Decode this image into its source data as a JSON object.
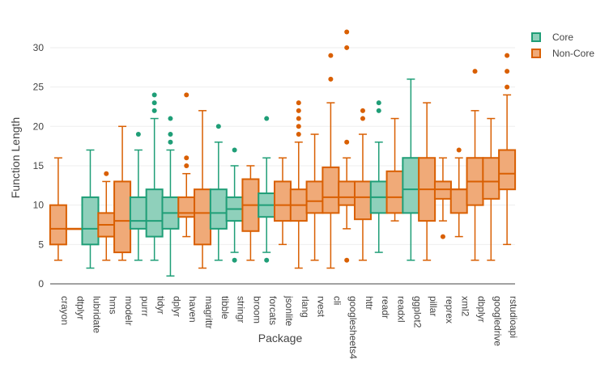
{
  "chart_data": {
    "type": "box",
    "xlabel": "Package",
    "ylabel": "Function Length",
    "ylim": [
      0,
      34
    ],
    "yticks": [
      0,
      5,
      10,
      15,
      20,
      25,
      30
    ],
    "grid": true,
    "legend_position": "top-right",
    "colors": {
      "Core": "#1f9e77",
      "Non-Core": "#d95f02"
    },
    "series_names": [
      "Core",
      "Non-Core"
    ],
    "packages": [
      {
        "name": "crayon",
        "group": "Non-Core",
        "whislo": 3,
        "q1": 5,
        "med": 7,
        "q3": 10,
        "whishi": 16,
        "outliers": []
      },
      {
        "name": "dtplyr",
        "group": "Non-Core",
        "whislo": 7,
        "q1": 7,
        "med": 7,
        "q3": 7,
        "whishi": 7,
        "outliers": []
      },
      {
        "name": "lubridate",
        "group": "Core",
        "whislo": 2,
        "q1": 5,
        "med": 7,
        "q3": 11,
        "whishi": 17,
        "outliers": []
      },
      {
        "name": "hms",
        "group": "Non-Core",
        "whislo": 3,
        "q1": 6,
        "med": 7.5,
        "q3": 9,
        "whishi": 13,
        "outliers": [
          14
        ]
      },
      {
        "name": "modelr",
        "group": "Non-Core",
        "whislo": 3,
        "q1": 4,
        "med": 8,
        "q3": 13,
        "whishi": 20,
        "outliers": []
      },
      {
        "name": "purrr",
        "group": "Core",
        "whislo": 3,
        "q1": 7,
        "med": 8,
        "q3": 11,
        "whishi": 17,
        "outliers": [
          19
        ]
      },
      {
        "name": "tidyr",
        "group": "Core",
        "whislo": 3,
        "q1": 6,
        "med": 8,
        "q3": 12,
        "whishi": 21,
        "outliers": [
          22,
          23,
          24
        ]
      },
      {
        "name": "dplyr",
        "group": "Core",
        "whislo": 1,
        "q1": 7,
        "med": 9,
        "q3": 11,
        "whishi": 17,
        "outliers": [
          18,
          19,
          21
        ]
      },
      {
        "name": "haven",
        "group": "Non-Core",
        "whislo": 6,
        "q1": 8.5,
        "med": 9,
        "q3": 11,
        "whishi": 14,
        "outliers": [
          15,
          16,
          24
        ]
      },
      {
        "name": "magrittr",
        "group": "Non-Core",
        "whislo": 2,
        "q1": 5,
        "med": 9,
        "q3": 12,
        "whishi": 22,
        "outliers": []
      },
      {
        "name": "tibble",
        "group": "Core",
        "whislo": 3,
        "q1": 7,
        "med": 9,
        "q3": 12,
        "whishi": 18,
        "outliers": [
          20
        ]
      },
      {
        "name": "stringr",
        "group": "Core",
        "whislo": 4,
        "q1": 8,
        "med": 9.5,
        "q3": 11,
        "whishi": 15,
        "outliers": [
          3,
          17
        ]
      },
      {
        "name": "broom",
        "group": "Non-Core",
        "whislo": 3,
        "q1": 6.7,
        "med": 10,
        "q3": 13.3,
        "whishi": 15,
        "outliers": []
      },
      {
        "name": "forcats",
        "group": "Core",
        "whislo": 4,
        "q1": 8.5,
        "med": 10,
        "q3": 11.5,
        "whishi": 16,
        "outliers": [
          3,
          21
        ]
      },
      {
        "name": "jsonlite",
        "group": "Non-Core",
        "whislo": 5,
        "q1": 8,
        "med": 10,
        "q3": 13,
        "whishi": 16,
        "outliers": []
      },
      {
        "name": "rlang",
        "group": "Non-Core",
        "whislo": 2,
        "q1": 8,
        "med": 10,
        "q3": 12,
        "whishi": 18,
        "outliers": [
          19,
          20,
          21,
          22,
          23
        ]
      },
      {
        "name": "rvest",
        "group": "Non-Core",
        "whislo": 3,
        "q1": 9,
        "med": 10.5,
        "q3": 13,
        "whishi": 19,
        "outliers": []
      },
      {
        "name": "cli",
        "group": "Non-Core",
        "whislo": 2,
        "q1": 9,
        "med": 11,
        "q3": 14.8,
        "whishi": 23,
        "outliers": [
          26,
          29
        ]
      },
      {
        "name": "googlesheets4",
        "group": "Non-Core",
        "whislo": 7,
        "q1": 10,
        "med": 11,
        "q3": 13,
        "whishi": 16,
        "outliers": [
          3,
          18,
          30,
          32
        ]
      },
      {
        "name": "httr",
        "group": "Non-Core",
        "whislo": 3,
        "q1": 8.2,
        "med": 11,
        "q3": 13,
        "whishi": 19,
        "outliers": [
          21,
          22
        ]
      },
      {
        "name": "readr",
        "group": "Core",
        "whislo": 4,
        "q1": 9,
        "med": 11,
        "q3": 13,
        "whishi": 18,
        "outliers": [
          22,
          23
        ]
      },
      {
        "name": "readxl",
        "group": "Non-Core",
        "whislo": 8,
        "q1": 9,
        "med": 11,
        "q3": 14.3,
        "whishi": 21,
        "outliers": []
      },
      {
        "name": "ggplot2",
        "group": "Core",
        "whislo": 3,
        "q1": 9,
        "med": 12,
        "q3": 16,
        "whishi": 26,
        "outliers": []
      },
      {
        "name": "pillar",
        "group": "Non-Core",
        "whislo": 3,
        "q1": 8,
        "med": 12,
        "q3": 16,
        "whishi": 23,
        "outliers": []
      },
      {
        "name": "reprex",
        "group": "Non-Core",
        "whislo": 8,
        "q1": 10.8,
        "med": 12,
        "q3": 13,
        "whishi": 16,
        "outliers": [
          6
        ]
      },
      {
        "name": "xml2",
        "group": "Non-Core",
        "whislo": 6,
        "q1": 9,
        "med": 12,
        "q3": 12,
        "whishi": 16,
        "outliers": [
          17
        ]
      },
      {
        "name": "dbplyr",
        "group": "Non-Core",
        "whislo": 3,
        "q1": 10,
        "med": 13,
        "q3": 16,
        "whishi": 22,
        "outliers": [
          27
        ]
      },
      {
        "name": "googledrive",
        "group": "Non-Core",
        "whislo": 3,
        "q1": 10.8,
        "med": 13,
        "q3": 16,
        "whishi": 21,
        "outliers": []
      },
      {
        "name": "rstudioapi",
        "group": "Non-Core",
        "whislo": 5,
        "q1": 12,
        "med": 14,
        "q3": 17,
        "whishi": 24,
        "outliers": [
          25,
          27,
          29
        ]
      }
    ]
  }
}
